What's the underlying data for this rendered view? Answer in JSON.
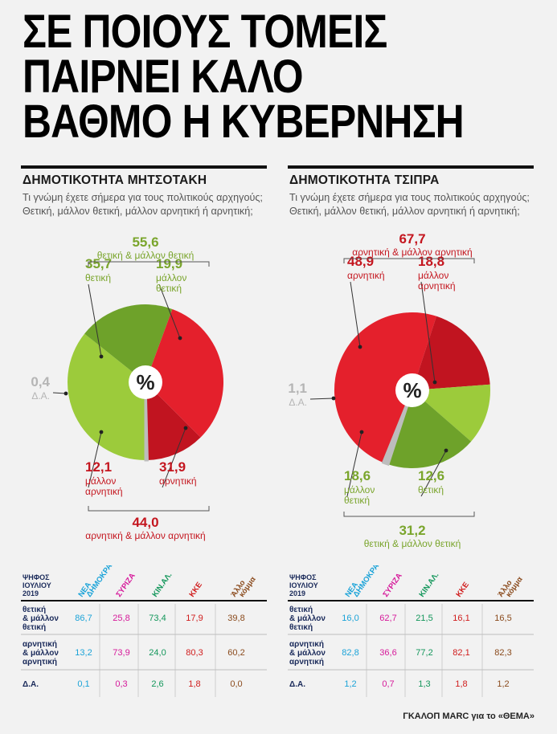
{
  "headline": [
    "ΣΕ ΠΟΙΟΥΣ ΤΟΜΕΙΣ",
    "ΠΑΙΡΝΕΙ ΚΑΛΟ",
    "ΒΑΘΜΟ Η ΚΥΒΕΡΝΗΣΗ"
  ],
  "source": "ΓΚΑΛΟΠ MARC για το «ΘΕΜΑ»",
  "colors": {
    "green_light": "#9ccb3b",
    "green_dark": "#6ea22a",
    "red_dark": "#c11420",
    "red_bright": "#e4202c",
    "gray": "#bdbdbd",
    "green_text": "#7aa52c",
    "red_text": "#c4161f",
    "nd": "#1ba3d8",
    "syriza": "#d6199a",
    "kinal": "#12965a",
    "kke": "#d01c1c",
    "other": "#8a4a1c"
  },
  "chart_data": [
    {
      "type": "pie",
      "title": "ΔΗΜΟΤΙΚΟΤΗΤΑ ΜΗΤΣΟΤΑΚΗ",
      "question": "Τι γνώμη έχετε σήμερα για τους πολιτικούς αρχηγούς; Θετική, μάλλον θετική, μάλλον αρνητική ή αρνητική;",
      "center_label": "%",
      "slices": [
        {
          "name": "θετική",
          "value": 35.7,
          "label": "35,7",
          "color_key": "green_light"
        },
        {
          "name": "μάλλον θετική",
          "value": 19.9,
          "label": "19,9",
          "color_key": "green_dark"
        },
        {
          "name": "αρνητική",
          "value": 31.9,
          "label": "31,9",
          "color_key": "red_bright"
        },
        {
          "name": "μάλλον αρνητική",
          "value": 12.1,
          "label": "12,1",
          "color_key": "red_dark"
        },
        {
          "name": "Δ.Α.",
          "value": 0.4,
          "label": "0,4",
          "color_key": "gray"
        }
      ],
      "group_top": {
        "value": "55,6",
        "label": "θετική & μάλλον θετική",
        "color_key": "green_text"
      },
      "group_bottom": {
        "value": "44,0",
        "label": "αρνητική & μάλλον αρνητική",
        "color_key": "red_text"
      },
      "table": {
        "year_header": [
          "ΨΗΦΟΣ",
          "ΙΟΥΛΙΟΥ",
          "2019"
        ],
        "parties": [
          {
            "name": "ΝΕΑ ΔΗΜΟΚΡΑΤΙΑ",
            "color_key": "nd"
          },
          {
            "name": "ΣΥΡΙΖΑ",
            "color_key": "syriza"
          },
          {
            "name": "ΚΙΝ.ΑΛ.",
            "color_key": "kinal"
          },
          {
            "name": "ΚΚΕ",
            "color_key": "kke"
          },
          {
            "name": "Άλλο κόμμα",
            "color_key": "other"
          }
        ],
        "rows": [
          {
            "label": [
              "θετική",
              "& μάλλον",
              "θετική"
            ],
            "values": [
              "86,7",
              "25,8",
              "73,4",
              "17,9",
              "39,8"
            ]
          },
          {
            "label": [
              "αρνητική",
              "& μάλλον",
              "αρνητική"
            ],
            "values": [
              "13,2",
              "73,9",
              "24,0",
              "80,3",
              "60,2"
            ]
          },
          {
            "label": [
              "Δ.Α."
            ],
            "values": [
              "0,1",
              "0,3",
              "2,6",
              "1,8",
              "0,0"
            ]
          }
        ]
      }
    },
    {
      "type": "pie",
      "title": "ΔΗΜΟΤΙΚΟΤΗΤΑ ΤΣΙΠΡΑ",
      "question": "Τι γνώμη έχετε σήμερα για τους πολιτικούς αρχηγούς; Θετική, μάλλον θετική, μάλλον αρνητική ή αρνητική;",
      "center_label": "%",
      "slices": [
        {
          "name": "αρνητική",
          "value": 48.9,
          "label": "48,9",
          "color_key": "red_bright"
        },
        {
          "name": "μάλλον αρνητική",
          "value": 18.8,
          "label": "18,8",
          "color_key": "red_dark"
        },
        {
          "name": "θετική",
          "value": 12.6,
          "label": "12,6",
          "color_key": "green_light"
        },
        {
          "name": "μάλλον θετική",
          "value": 18.6,
          "label": "18,6",
          "color_key": "green_dark"
        },
        {
          "name": "Δ.Α.",
          "value": 1.1,
          "label": "1,1",
          "color_key": "gray"
        }
      ],
      "group_top": {
        "value": "67,7",
        "label": "αρνητική & μάλλον αρνητική",
        "color_key": "red_text"
      },
      "group_bottom": {
        "value": "31,2",
        "label": "θετική & μάλλον θετική",
        "color_key": "green_text"
      },
      "table": {
        "year_header": [
          "ΨΗΦΟΣ",
          "ΙΟΥΛΙΟΥ",
          "2019"
        ],
        "parties": [
          {
            "name": "ΝΕΑ ΔΗΜΟΚΡΑΤΙΑ",
            "color_key": "nd"
          },
          {
            "name": "ΣΥΡΙΖΑ",
            "color_key": "syriza"
          },
          {
            "name": "ΚΙΝ.ΑΛ.",
            "color_key": "kinal"
          },
          {
            "name": "ΚΚΕ",
            "color_key": "kke"
          },
          {
            "name": "Άλλο κόμμα",
            "color_key": "other"
          }
        ],
        "rows": [
          {
            "label": [
              "θετική",
              "& μάλλον",
              "θετική"
            ],
            "values": [
              "16,0",
              "62,7",
              "21,5",
              "16,1",
              "16,5"
            ]
          },
          {
            "label": [
              "αρνητική",
              "& μάλλον",
              "αρνητική"
            ],
            "values": [
              "82,8",
              "36,6",
              "77,2",
              "82,1",
              "82,3"
            ]
          },
          {
            "label": [
              "Δ.Α."
            ],
            "values": [
              "1,2",
              "0,7",
              "1,3",
              "1,8",
              "1,2"
            ]
          }
        ]
      }
    }
  ]
}
